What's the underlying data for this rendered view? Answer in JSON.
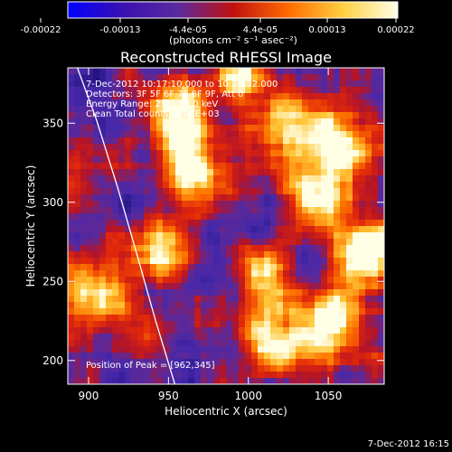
{
  "colorbar": {
    "tick_labels": [
      "-0.00022",
      "-0.00013",
      "-4.4e-05",
      "4.4e-05",
      "0.00013",
      "0.00022"
    ],
    "unit": "(photons cm⁻² s⁻¹ asec⁻²)",
    "gradient": [
      "#0000ff",
      "#3a10b0",
      "#5b2aa0",
      "#c01010",
      "#ff6a00",
      "#ffd040",
      "#ffffe8"
    ]
  },
  "chart_data": {
    "type": "heatmap",
    "title": "Reconstructed RHESSI Image",
    "xlabel": "Heliocentric X (arcsec)",
    "ylabel": "Heliocentric Y (arcsec)",
    "xlim": [
      887,
      1085
    ],
    "ylim": [
      185,
      385
    ],
    "x_ticks": [
      900,
      950,
      1000,
      1050
    ],
    "y_ticks": [
      200,
      250,
      300,
      350
    ],
    "annotations": [
      "7-Dec-2012 10:17:10.000 to 10:20:32.000",
      "Detectors: 3F 5F 6F 7F 8F 9F, Att 0",
      "Energy Range: 25.0-50.0 keV",
      "Clean     Total counts: 8.04E+03"
    ],
    "peak_label": "Position of Peak = [962,345]",
    "limb_curve": {
      "x": [
        893,
        905,
        918,
        930,
        942,
        954
      ],
      "y": [
        385,
        352,
        310,
        268,
        225,
        185
      ]
    },
    "bright_regions": [
      {
        "x": 955,
        "y": 355,
        "level": 0.95
      },
      {
        "x": 965,
        "y": 320,
        "level": 0.8
      },
      {
        "x": 905,
        "y": 240,
        "level": 0.7
      },
      {
        "x": 1030,
        "y": 345,
        "level": 0.8
      },
      {
        "x": 1075,
        "y": 270,
        "level": 0.95
      },
      {
        "x": 1060,
        "y": 335,
        "level": 0.85
      },
      {
        "x": 1010,
        "y": 250,
        "level": 0.8
      },
      {
        "x": 1020,
        "y": 210,
        "level": 0.75
      },
      {
        "x": 1040,
        "y": 305,
        "level": 0.65
      },
      {
        "x": 1055,
        "y": 225,
        "level": 0.75
      },
      {
        "x": 945,
        "y": 275,
        "level": 0.7
      },
      {
        "x": 1000,
        "y": 380,
        "level": 0.7
      }
    ]
  },
  "footer": {
    "date": "7-Dec-2012 16:15"
  }
}
